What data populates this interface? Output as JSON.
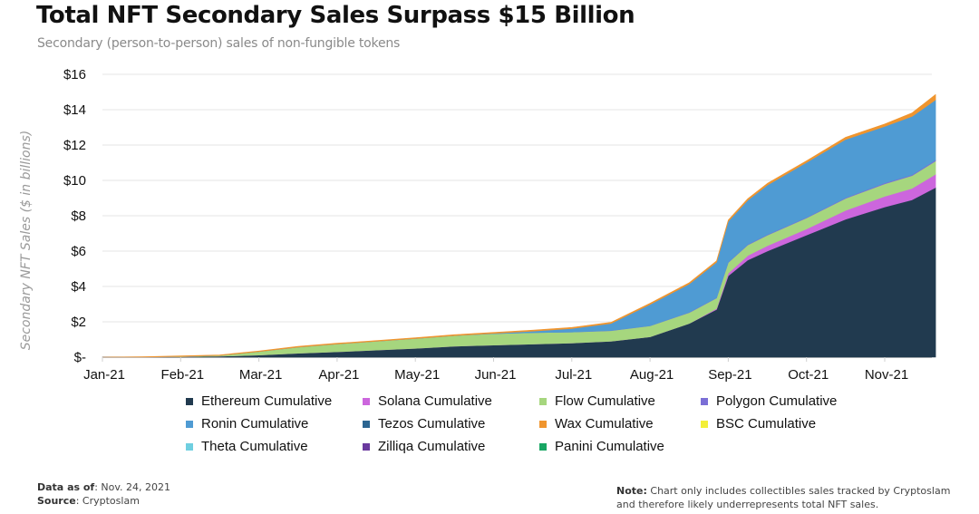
{
  "header": {
    "title": "Total NFT Secondary Sales Surpass $15 Billion",
    "subtitle": "Secondary (person-to-person) sales of non-fungible tokens"
  },
  "footer": {
    "data_as_of_label": "Data as of",
    "data_as_of_value": ": Nov. 24, 2021",
    "source_label": "Source",
    "source_value": ": Cryptoslam",
    "note_label": "Note:",
    "note_line1": " Chart only includes collectibles sales tracked by Cryptoslam",
    "note_line2": "and therefore likely underrepresents total NFT sales."
  },
  "chart_data": {
    "type": "area",
    "stacked": true,
    "title": "Total NFT Secondary Sales Surpass $15 Billion",
    "subtitle": "Secondary (person-to-person) sales of non-fungible tokens",
    "xlabel": "",
    "ylabel": "Secondary NFT Sales ($ in billions)",
    "ylim": [
      0,
      16
    ],
    "yticks": [
      0,
      2,
      4,
      6,
      8,
      10,
      12,
      14,
      16
    ],
    "ytick_labels": [
      "$-",
      "$2",
      "$4",
      "$6",
      "$8",
      "$10",
      "$12",
      "$14",
      "$16"
    ],
    "xlim": [
      0,
      10.65
    ],
    "xticks": [
      0,
      1,
      2,
      3,
      4,
      5,
      6,
      7,
      8,
      9,
      10
    ],
    "xtick_labels": [
      "Jan-21",
      "Feb-21",
      "Mar-21",
      "Apr-21",
      "May-21",
      "Jun-21",
      "Jul-21",
      "Aug-21",
      "Sep-21",
      "Oct-21",
      "Nov-21"
    ],
    "x_unit": "months since Jan 1, 2021",
    "grid": "horizontal",
    "legend_position": "bottom",
    "x": [
      0,
      0.5,
      1,
      1.5,
      2,
      2.5,
      3,
      3.5,
      4,
      4.5,
      5,
      5.5,
      6,
      6.5,
      7,
      7.5,
      7.85,
      8,
      8.25,
      8.5,
      9,
      9.5,
      10,
      10.35,
      10.65
    ],
    "series": [
      {
        "name": "Ethereum Cumulative",
        "color": "#213a4f",
        "values": [
          0,
          0,
          0.02,
          0.05,
          0.12,
          0.22,
          0.3,
          0.4,
          0.5,
          0.62,
          0.68,
          0.74,
          0.8,
          0.9,
          1.15,
          1.9,
          2.7,
          4.6,
          5.5,
          6.0,
          6.9,
          7.8,
          8.5,
          8.9,
          9.6
        ]
      },
      {
        "name": "Solana Cumulative",
        "color": "#cc66dd",
        "values": [
          0,
          0,
          0,
          0,
          0,
          0,
          0,
          0,
          0,
          0,
          0,
          0,
          0,
          0,
          0,
          0,
          0.05,
          0.15,
          0.25,
          0.3,
          0.35,
          0.5,
          0.6,
          0.65,
          0.75
        ]
      },
      {
        "name": "Flow Cumulative",
        "color": "#a6d67e",
        "values": [
          0,
          0,
          0.02,
          0.05,
          0.2,
          0.35,
          0.45,
          0.5,
          0.55,
          0.6,
          0.65,
          0.65,
          0.62,
          0.6,
          0.62,
          0.62,
          0.6,
          0.6,
          0.6,
          0.6,
          0.62,
          0.68,
          0.7,
          0.72,
          0.75
        ]
      },
      {
        "name": "Polygon Cumulative",
        "color": "#7b6fd6",
        "values": [
          0,
          0,
          0,
          0,
          0,
          0,
          0,
          0,
          0,
          0,
          0,
          0,
          0,
          0.01,
          0.01,
          0.02,
          0.02,
          0.03,
          0.03,
          0.03,
          0.04,
          0.04,
          0.05,
          0.05,
          0.06
        ]
      },
      {
        "name": "Ronin Cumulative",
        "color": "#4f9bd3",
        "values": [
          0,
          0,
          0,
          0,
          0,
          0,
          0,
          0,
          0,
          0,
          0.02,
          0.08,
          0.2,
          0.4,
          1.2,
          1.6,
          2.0,
          2.3,
          2.5,
          2.8,
          3.1,
          3.3,
          3.2,
          3.3,
          3.4
        ]
      },
      {
        "name": "Tezos Cumulative",
        "color": "#2c6591",
        "values": [
          0,
          0,
          0,
          0,
          0,
          0,
          0,
          0,
          0,
          0,
          0,
          0,
          0,
          0,
          0,
          0,
          0,
          0,
          0,
          0,
          0,
          0,
          0,
          0,
          0
        ]
      },
      {
        "name": "Wax Cumulative",
        "color": "#f0952e",
        "values": [
          0,
          0.02,
          0.03,
          0.03,
          0.03,
          0.04,
          0.04,
          0.04,
          0.05,
          0.05,
          0.05,
          0.06,
          0.06,
          0.06,
          0.07,
          0.07,
          0.08,
          0.08,
          0.09,
          0.1,
          0.1,
          0.12,
          0.14,
          0.2,
          0.3
        ]
      },
      {
        "name": "BSC Cumulative",
        "color": "#f3ef38",
        "values": [
          0,
          0,
          0,
          0,
          0,
          0,
          0,
          0,
          0,
          0,
          0,
          0,
          0,
          0,
          0,
          0,
          0,
          0,
          0,
          0,
          0,
          0,
          0,
          0,
          0
        ]
      },
      {
        "name": "Theta Cumulative",
        "color": "#6fcfe0",
        "values": [
          0,
          0,
          0,
          0,
          0,
          0,
          0,
          0,
          0,
          0,
          0,
          0,
          0,
          0,
          0,
          0,
          0,
          0,
          0,
          0,
          0,
          0,
          0,
          0,
          0
        ]
      },
      {
        "name": "Zilliqa Cumulative",
        "color": "#6a3a9e",
        "values": [
          0,
          0,
          0,
          0,
          0,
          0,
          0,
          0,
          0,
          0,
          0,
          0,
          0,
          0,
          0,
          0,
          0,
          0,
          0,
          0,
          0,
          0,
          0,
          0,
          0
        ]
      },
      {
        "name": "Panini Cumulative",
        "color": "#18a663",
        "values": [
          0,
          0,
          0,
          0,
          0,
          0,
          0,
          0,
          0,
          0,
          0,
          0,
          0,
          0,
          0,
          0,
          0,
          0,
          0,
          0,
          0,
          0,
          0,
          0,
          0
        ]
      }
    ],
    "legend_order": [
      "Ethereum Cumulative",
      "Solana Cumulative",
      "Flow Cumulative",
      "Polygon Cumulative",
      "Ronin Cumulative",
      "Tezos Cumulative",
      "Wax Cumulative",
      "BSC Cumulative",
      "Theta Cumulative",
      "Zilliqa Cumulative",
      "Panini Cumulative"
    ]
  }
}
